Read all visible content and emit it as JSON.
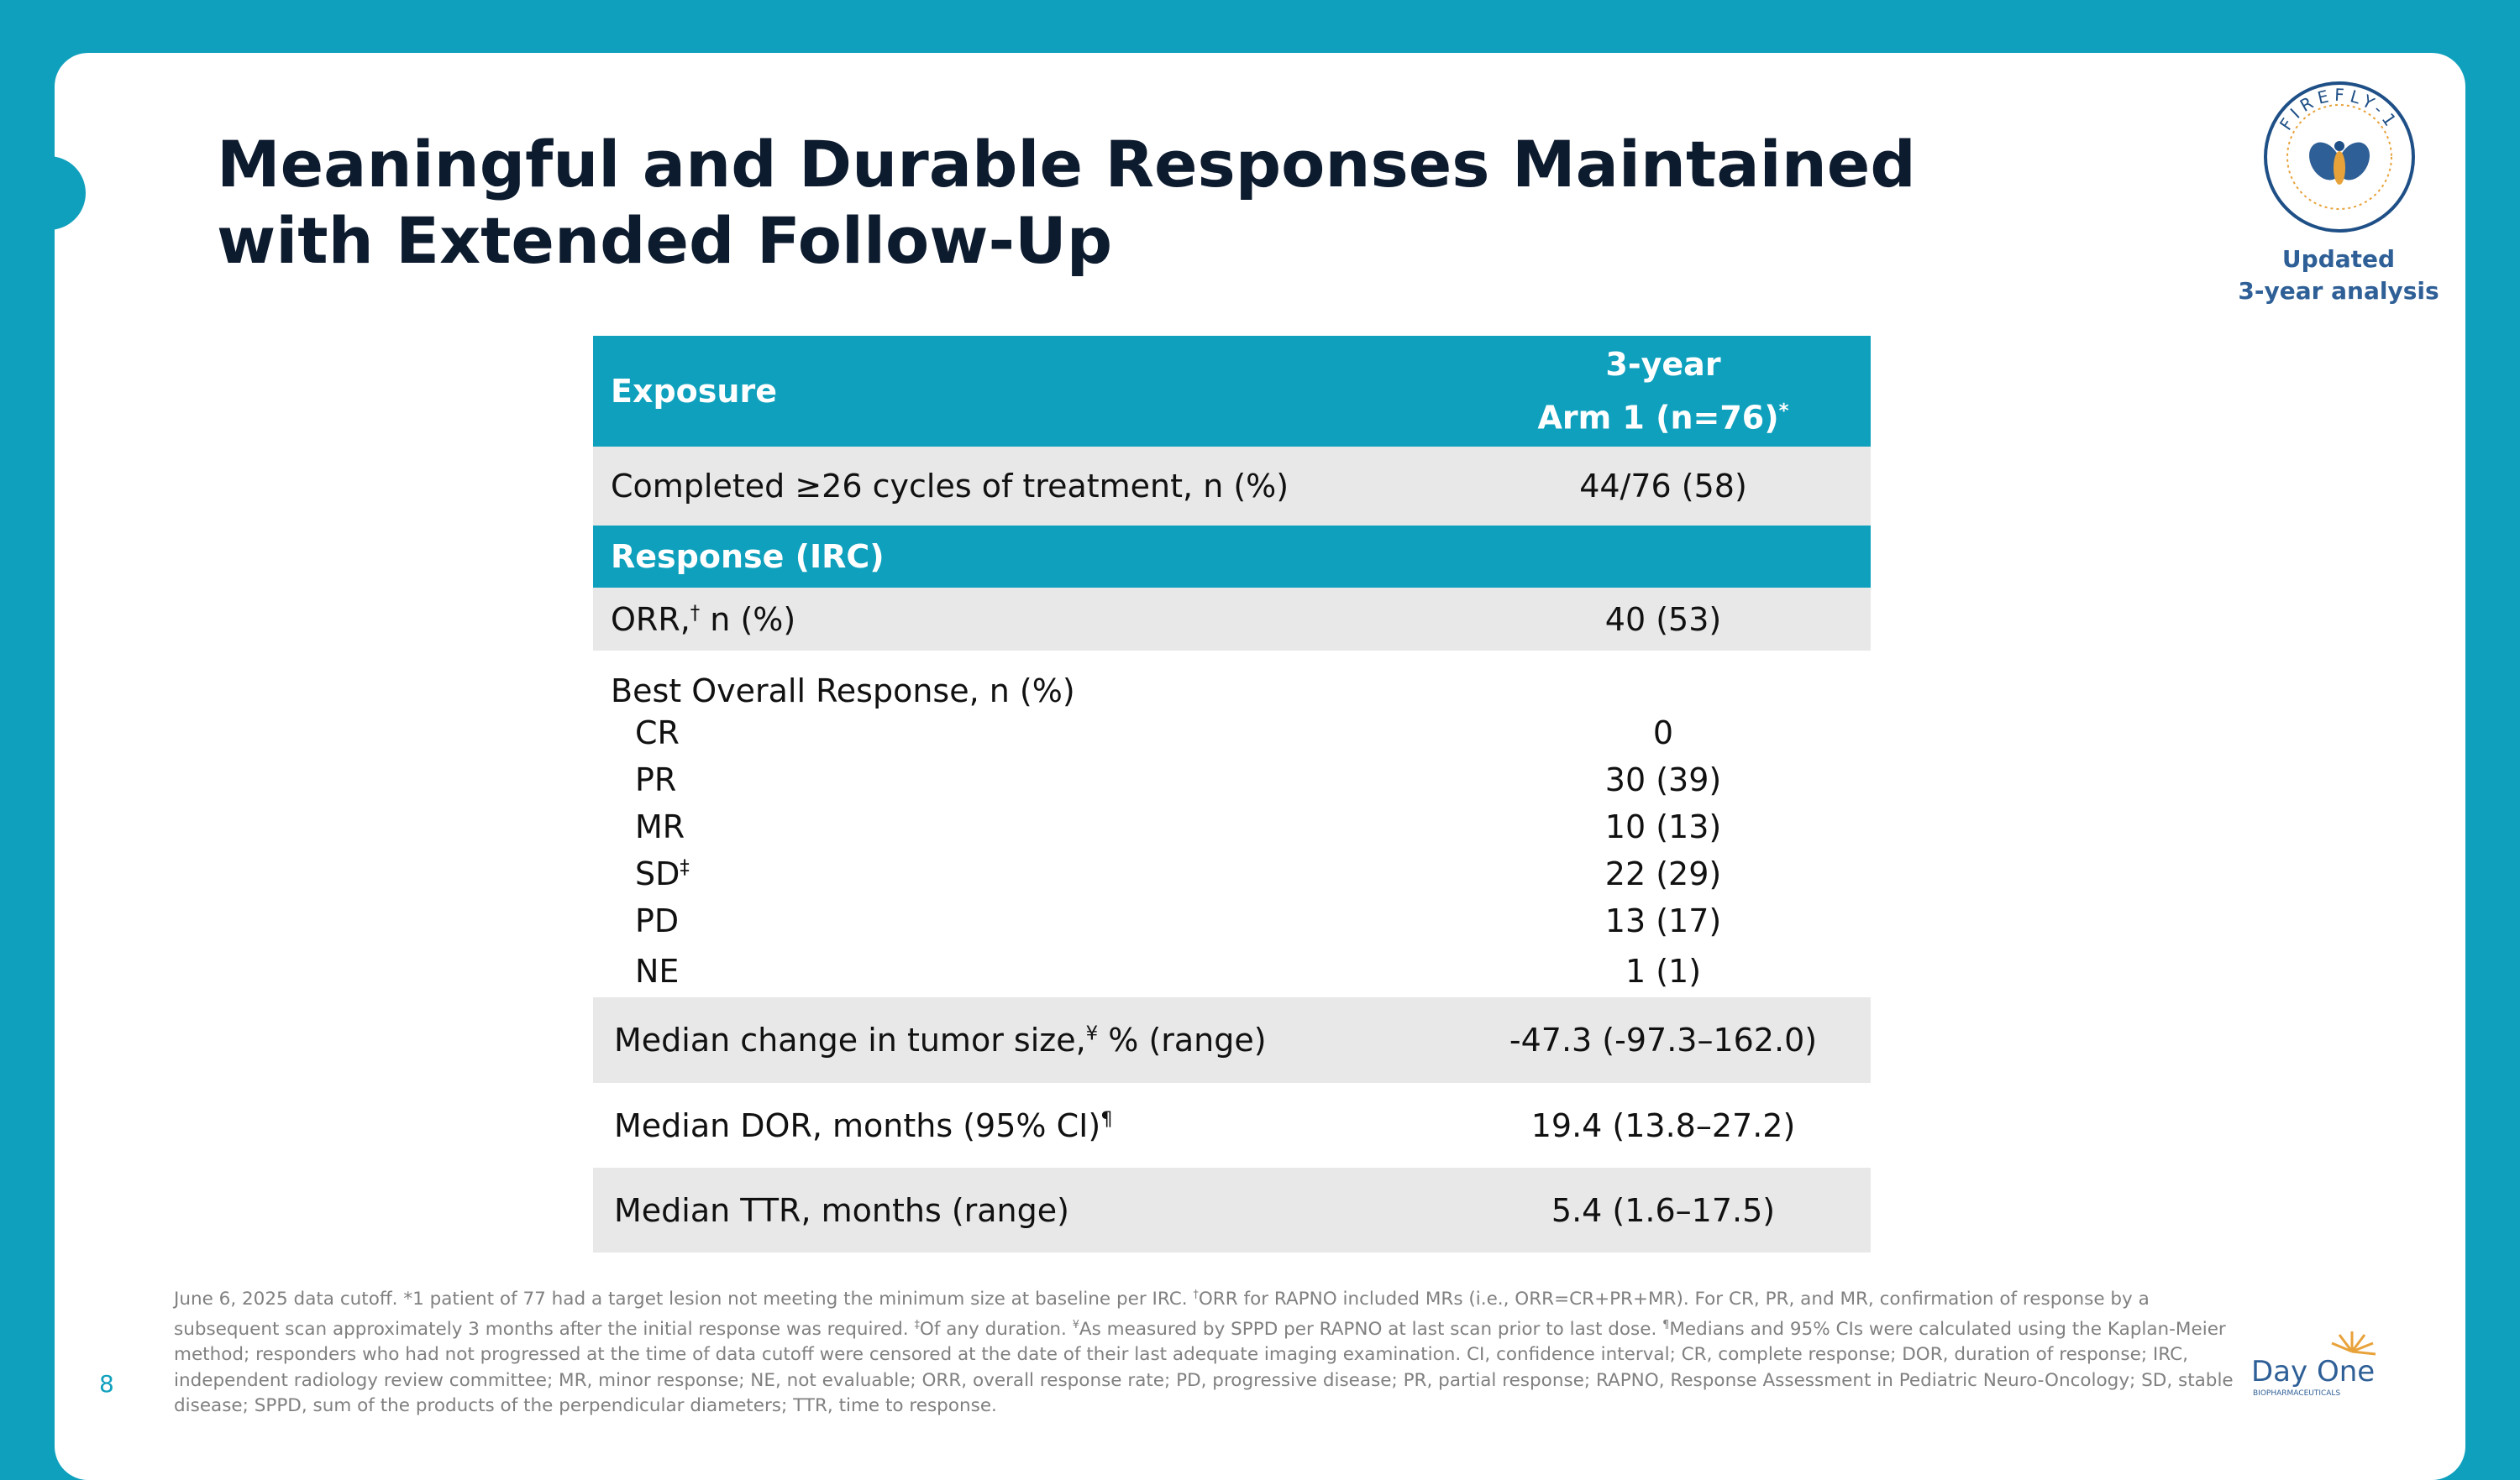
{
  "header": {
    "title": "Meaningful and Durable Responses Maintained with Extended Follow-Up",
    "badge": [
      "Updated",
      "3-year analysis"
    ],
    "logo": "FIREFLY-1"
  },
  "table": {
    "col1": "Exposure",
    "col2": [
      "3-year",
      "Arm 1 (n=76)"
    ],
    "col2_sup": "*",
    "rows": [
      {
        "type": "data",
        "label": "Completed ≥26 cycles of treatment, n (%)",
        "value": "44/76 (58)"
      },
      {
        "type": "section",
        "label": "Response (IRC)"
      },
      {
        "type": "data",
        "label": "ORR,",
        "sup": "†",
        "rest": " n (%)",
        "value": "40 (53)"
      },
      {
        "type": "group",
        "label": "Best Overall Response, n (%)"
      },
      {
        "type": "sub",
        "label": "CR",
        "value": "0"
      },
      {
        "type": "sub",
        "label": "PR",
        "value": "30 (39)"
      },
      {
        "type": "sub",
        "label": "MR",
        "value": "10 (13)"
      },
      {
        "type": "sub",
        "label": "SD",
        "sup": "‡",
        "value": "22 (29)"
      },
      {
        "type": "sub",
        "label": "PD",
        "value": "13 (17)"
      },
      {
        "type": "sub",
        "label": "NE",
        "value": "1 (1)"
      },
      {
        "type": "data",
        "label": "Median change in tumor size,",
        "sup": "¥",
        "rest": " % (range)",
        "value": "-47.3 (-97.3–162.0)"
      },
      {
        "type": "data",
        "label": "Median DOR, months (95% CI)",
        "sup": "¶",
        "value": "19.4 (13.8–27.2)"
      },
      {
        "type": "data",
        "label": "Median TTR, months (range)",
        "value": "5.4 (1.6–17.5)"
      }
    ]
  },
  "footnote": [
    "June 6, 2025 data cutoff. *1 patient of 77 had a target lesion not meeting the minimum size at baseline per IRC. ",
    "†",
    "ORR for RAPNO included MRs (i.e., ORR=CR+PR+MR). For CR, PR, and MR, confirmation of response by a subsequent scan approximately 3 months after the initial response was required. ",
    "‡",
    "Of any duration. ",
    "¥",
    "As measured by SPPD per RAPNO at last scan prior to last dose. ",
    "¶",
    "Medians and 95% CIs were calculated using the Kaplan-Meier method; responders who had not progressed at the time of data cutoff were censored at the date of their last adequate imaging examination.  CI, confidence interval; CR, complete response; DOR, duration of response; IRC, independent radiology review committee; MR, minor response; NE, not evaluable; ORR, overall response rate; PD, progressive disease; PR, partial response; RAPNO, Response Assessment in Pediatric Neuro-Oncology; SD, stable disease; SPPD, sum of the products of the perpendicular diameters; TTR, time to response."
  ],
  "page_number": "8",
  "brand": {
    "name": "Day One",
    "tagline": "BIOPHARMACEUTICALS"
  }
}
